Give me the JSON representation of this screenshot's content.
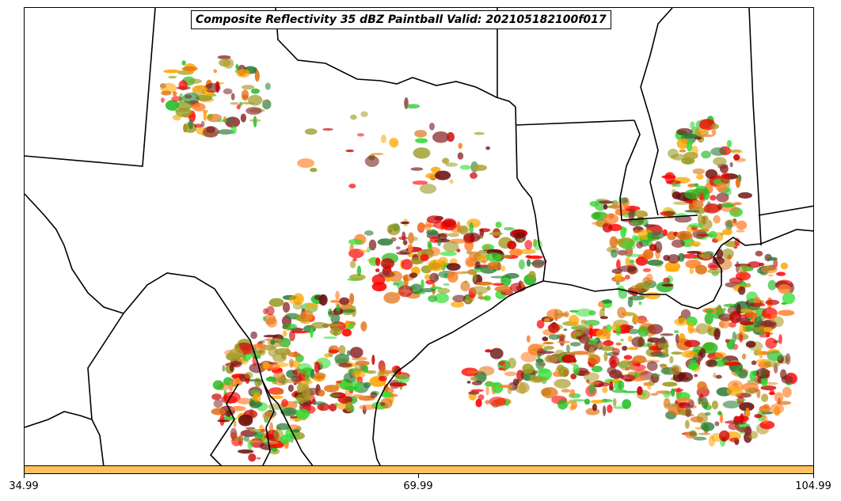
{
  "title": "Composite Reflectivity 35 dBZ Paintball Valid: 202105182100f017",
  "member_colors": [
    "#ff0000",
    "#ff7f27",
    "#ffa500",
    "#8b2a2a",
    "#9a9a20",
    "#22bb22",
    "#2e7d3a",
    "#33dd33",
    "#cc0000",
    "#e07010",
    "#6b1010",
    "#b0a030"
  ],
  "colorbar": {
    "color": "#ffc060",
    "ticks": [
      {
        "label": "34.99"
      },
      {
        "label": "69.99"
      },
      {
        "label": "104.99"
      }
    ]
  }
}
